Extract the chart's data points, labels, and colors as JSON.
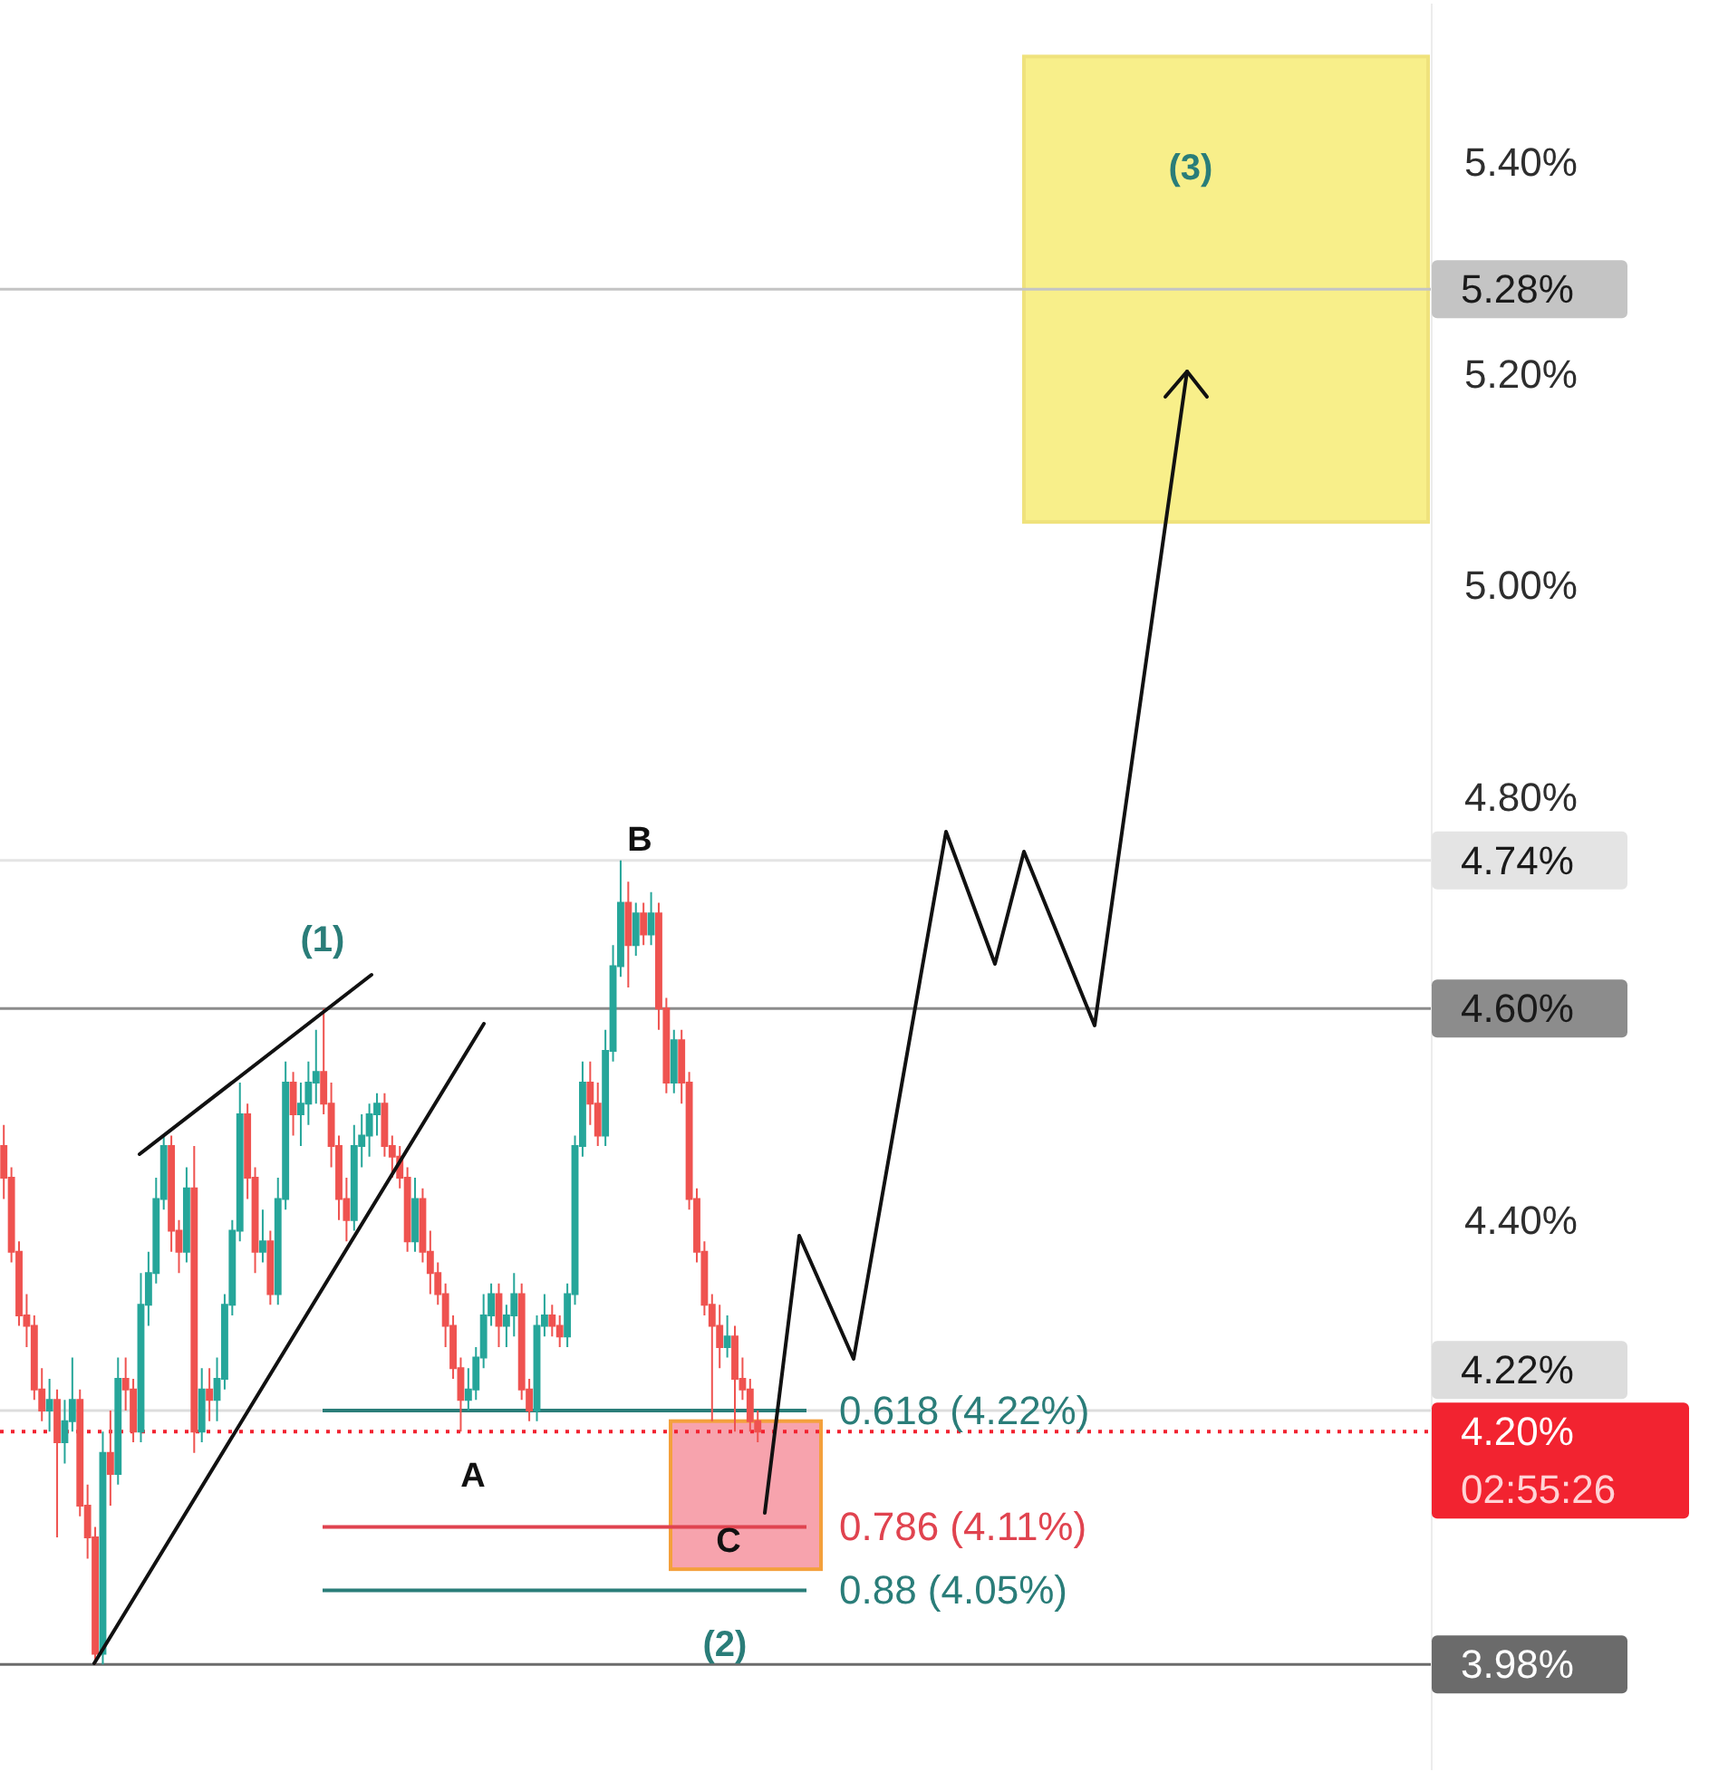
{
  "chart_data": {
    "type": "candlestick",
    "categories": [
      null,
      null,
      null,
      null,
      null,
      null,
      null,
      null,
      null,
      null,
      null,
      null,
      null,
      null,
      null,
      null,
      null,
      null,
      null,
      null,
      null,
      null,
      null,
      null,
      null,
      null,
      null,
      null,
      null,
      null,
      null,
      null,
      null,
      null,
      null,
      null,
      null,
      null,
      null,
      null,
      null,
      null,
      null,
      null,
      null,
      null,
      null,
      null,
      null,
      null,
      null,
      null,
      null,
      null,
      null,
      null,
      null,
      null,
      null,
      null,
      null,
      null,
      null,
      null,
      null,
      null,
      null,
      null,
      null,
      null,
      null,
      null,
      null,
      null,
      null,
      null,
      null,
      null,
      null,
      null,
      null,
      null,
      null,
      null,
      null,
      null,
      null,
      null,
      null,
      null,
      null,
      null,
      null,
      null,
      null,
      null,
      null,
      null,
      null,
      null,
      null,
      null,
      null,
      null,
      null,
      null,
      null,
      null,
      null,
      null,
      null,
      null,
      null,
      null,
      null,
      null,
      null,
      null,
      null,
      null,
      null,
      null,
      null,
      null,
      null,
      null,
      null,
      null,
      null,
      null,
      null,
      null,
      null,
      null,
      null,
      null,
      null,
      null,
      null,
      null,
      null,
      null,
      null,
      null,
      null,
      null,
      null,
      null,
      null,
      null,
      null,
      null,
      null,
      null,
      null,
      null,
      null,
      null,
      null,
      null,
      null,
      null,
      null,
      null,
      null,
      null,
      null,
      null,
      null,
      null,
      null,
      null,
      null,
      null,
      null,
      null,
      null,
      null,
      null,
      null,
      null,
      null,
      null,
      null,
      null,
      null,
      null,
      null
    ],
    "ohlc": [
      [
        4.47,
        4.49,
        4.42,
        4.44
      ],
      [
        4.44,
        4.45,
        4.36,
        4.37
      ],
      [
        4.37,
        4.38,
        4.3,
        4.31
      ],
      [
        4.31,
        4.33,
        4.28,
        4.3
      ],
      [
        4.3,
        4.31,
        4.23,
        4.24
      ],
      [
        4.24,
        4.26,
        4.21,
        4.22
      ],
      [
        4.22,
        4.25,
        4.2,
        4.23
      ],
      [
        4.23,
        4.24,
        4.1,
        4.19
      ],
      [
        4.19,
        4.23,
        4.17,
        4.21
      ],
      [
        4.21,
        4.27,
        4.2,
        4.23
      ],
      [
        4.23,
        4.24,
        4.12,
        4.13
      ],
      [
        4.13,
        4.15,
        4.08,
        4.1
      ],
      [
        4.1,
        4.11,
        3.98,
        3.99
      ],
      [
        3.99,
        4.2,
        3.98,
        4.18
      ],
      [
        4.18,
        4.22,
        4.13,
        4.16
      ],
      [
        4.16,
        4.27,
        4.15,
        4.25
      ],
      [
        4.25,
        4.27,
        4.22,
        4.24
      ],
      [
        4.24,
        4.25,
        4.19,
        4.2
      ],
      [
        4.2,
        4.35,
        4.19,
        4.32
      ],
      [
        4.32,
        4.37,
        4.3,
        4.35
      ],
      [
        4.35,
        4.44,
        4.34,
        4.42
      ],
      [
        4.42,
        4.48,
        4.41,
        4.47
      ],
      [
        4.47,
        4.48,
        4.37,
        4.39
      ],
      [
        4.39,
        4.4,
        4.35,
        4.37
      ],
      [
        4.37,
        4.45,
        4.36,
        4.43
      ],
      [
        4.43,
        4.47,
        4.18,
        4.2
      ],
      [
        4.2,
        4.26,
        4.19,
        4.24
      ],
      [
        4.24,
        4.26,
        4.21,
        4.23
      ],
      [
        4.23,
        4.27,
        4.21,
        4.25
      ],
      [
        4.25,
        4.33,
        4.24,
        4.32
      ],
      [
        4.32,
        4.4,
        4.31,
        4.39
      ],
      [
        4.39,
        4.53,
        4.38,
        4.5
      ],
      [
        4.5,
        4.51,
        4.42,
        4.44
      ],
      [
        4.44,
        4.45,
        4.35,
        4.37
      ],
      [
        4.37,
        4.41,
        4.36,
        4.38
      ],
      [
        4.38,
        4.39,
        4.32,
        4.33
      ],
      [
        4.33,
        4.44,
        4.32,
        4.42
      ],
      [
        4.42,
        4.55,
        4.41,
        4.53
      ],
      [
        4.53,
        4.54,
        4.48,
        4.5
      ],
      [
        4.5,
        4.53,
        4.47,
        4.51
      ],
      [
        4.51,
        4.55,
        4.49,
        4.53
      ],
      [
        4.53,
        4.58,
        4.51,
        4.54
      ],
      [
        4.54,
        4.6,
        4.5,
        4.51
      ],
      [
        4.51,
        4.53,
        4.45,
        4.47
      ],
      [
        4.47,
        4.48,
        4.4,
        4.42
      ],
      [
        4.42,
        4.44,
        4.38,
        4.4
      ],
      [
        4.4,
        4.49,
        4.39,
        4.47
      ],
      [
        4.47,
        4.5,
        4.45,
        4.48
      ],
      [
        4.48,
        4.51,
        4.46,
        4.5
      ],
      [
        4.5,
        4.52,
        4.48,
        4.51
      ],
      [
        4.51,
        4.52,
        4.46,
        4.47
      ],
      [
        4.47,
        4.48,
        4.44,
        4.46
      ],
      [
        4.46,
        4.47,
        4.43,
        4.44
      ],
      [
        4.44,
        4.45,
        4.37,
        4.38
      ],
      [
        4.38,
        4.44,
        4.37,
        4.42
      ],
      [
        4.42,
        4.43,
        4.36,
        4.37
      ],
      [
        4.37,
        4.39,
        4.33,
        4.35
      ],
      [
        4.35,
        4.36,
        4.32,
        4.33
      ],
      [
        4.33,
        4.34,
        4.28,
        4.3
      ],
      [
        4.3,
        4.31,
        4.25,
        4.26
      ],
      [
        4.26,
        4.27,
        4.2,
        4.23
      ],
      [
        4.23,
        4.26,
        4.22,
        4.24
      ],
      [
        4.24,
        4.28,
        4.23,
        4.27
      ],
      [
        4.27,
        4.33,
        4.26,
        4.31
      ],
      [
        4.31,
        4.34,
        4.3,
        4.33
      ],
      [
        4.33,
        4.34,
        4.28,
        4.3
      ],
      [
        4.3,
        4.32,
        4.28,
        4.31
      ],
      [
        4.31,
        4.35,
        4.29,
        4.33
      ],
      [
        4.33,
        4.34,
        4.23,
        4.24
      ],
      [
        4.24,
        4.25,
        4.21,
        4.22
      ],
      [
        4.22,
        4.31,
        4.21,
        4.3
      ],
      [
        4.3,
        4.33,
        4.29,
        4.31
      ],
      [
        4.31,
        4.32,
        4.29,
        4.3
      ],
      [
        4.3,
        4.31,
        4.28,
        4.29
      ],
      [
        4.29,
        4.34,
        4.28,
        4.33
      ],
      [
        4.33,
        4.48,
        4.32,
        4.47
      ],
      [
        4.47,
        4.55,
        4.46,
        4.53
      ],
      [
        4.53,
        4.55,
        4.49,
        4.51
      ],
      [
        4.51,
        4.53,
        4.47,
        4.48
      ],
      [
        4.48,
        4.58,
        4.47,
        4.56
      ],
      [
        4.56,
        4.66,
        4.55,
        4.64
      ],
      [
        4.64,
        4.74,
        4.63,
        4.7
      ],
      [
        4.7,
        4.72,
        4.62,
        4.66
      ],
      [
        4.66,
        4.7,
        4.65,
        4.69
      ],
      [
        4.69,
        4.7,
        4.66,
        4.67
      ],
      [
        4.67,
        4.71,
        4.66,
        4.69
      ],
      [
        4.69,
        4.7,
        4.58,
        4.6
      ],
      [
        4.6,
        4.61,
        4.52,
        4.53
      ],
      [
        4.53,
        4.58,
        4.52,
        4.57
      ],
      [
        4.57,
        4.58,
        4.51,
        4.53
      ],
      [
        4.53,
        4.54,
        4.41,
        4.42
      ],
      [
        4.42,
        4.43,
        4.36,
        4.37
      ],
      [
        4.37,
        4.38,
        4.31,
        4.32
      ],
      [
        4.32,
        4.33,
        4.21,
        4.3
      ],
      [
        4.3,
        4.32,
        4.26,
        4.28
      ],
      [
        4.28,
        4.31,
        4.27,
        4.29
      ],
      [
        4.29,
        4.3,
        4.2,
        4.25
      ],
      [
        4.25,
        4.27,
        4.23,
        4.24
      ],
      [
        4.24,
        4.25,
        4.2,
        4.21
      ],
      [
        4.21,
        4.22,
        4.19,
        4.2
      ],
      null,
      null,
      null,
      null,
      null,
      null,
      null,
      null,
      null,
      null,
      null,
      null,
      null,
      null,
      null,
      null,
      null,
      null,
      null,
      null,
      null,
      null,
      null,
      null,
      null,
      null,
      null,
      null,
      null,
      null,
      null,
      null,
      null,
      null,
      null,
      null,
      null,
      null,
      null,
      null,
      null,
      null,
      null,
      null,
      null,
      null,
      null,
      null,
      null,
      null,
      null,
      null,
      null,
      null,
      null,
      null,
      null,
      null,
      null,
      null,
      null,
      null,
      null,
      null,
      null,
      null,
      null,
      null,
      null,
      null,
      null,
      null,
      null,
      null,
      null,
      null,
      null,
      null,
      null,
      null,
      null,
      null,
      null,
      null,
      null,
      null,
      null,
      null
    ],
    "ylim": [
      3.88,
      5.55
    ],
    "yticks": [
      {
        "value": 4.4,
        "label": "4.40%"
      },
      {
        "value": 4.8,
        "label": "4.80%"
      },
      {
        "value": 5,
        "label": "5.00%"
      },
      {
        "value": 5.2,
        "label": "5.20%"
      },
      {
        "value": 5.4,
        "label": "5.40%"
      }
    ],
    "tick_labels": "y",
    "ref_lines": [
      {
        "axis": "y",
        "value": 5.28,
        "label": "5.28%",
        "color": "#c4c4c4"
      },
      {
        "axis": "y",
        "value": 4.74,
        "label": "4.74%",
        "color": "#e4e4e4"
      },
      {
        "axis": "y",
        "value": 4.6,
        "label": "4.60%",
        "color": "#8c8c8c"
      },
      {
        "axis": "y",
        "value": 4.22,
        "label": "4.22%",
        "color": "#dddddd"
      },
      {
        "axis": "y",
        "value": 4.2,
        "label": "4.20%",
        "color": "#f22330",
        "line_style": "dotted"
      },
      {
        "axis": "y",
        "value": 3.98,
        "label": "3.98%",
        "color": "#6b6b6b"
      },
      {
        "axis": "y",
        "value": 4.22,
        "label": "0.618 (4.22%)",
        "color": "#2a7d79"
      },
      {
        "axis": "y",
        "value": 4.11,
        "label": "0.786 (4.11%)",
        "color": "#e0434f"
      },
      {
        "axis": "y",
        "value": 4.05,
        "label": "0.88 (4.05%)",
        "color": "#2a7d79"
      }
    ],
    "bands": [
      {
        "axis": "y",
        "from": 5.06,
        "to": 5.5,
        "label": "(3)",
        "color": "#f8ef8a"
      },
      {
        "axis": "y",
        "from": 4.07,
        "to": 4.21,
        "color": "#f7a3ad"
      }
    ],
    "annotations": [
      "(1)",
      "B",
      "A",
      "C",
      "(2)",
      "02:55:26"
    ]
  }
}
